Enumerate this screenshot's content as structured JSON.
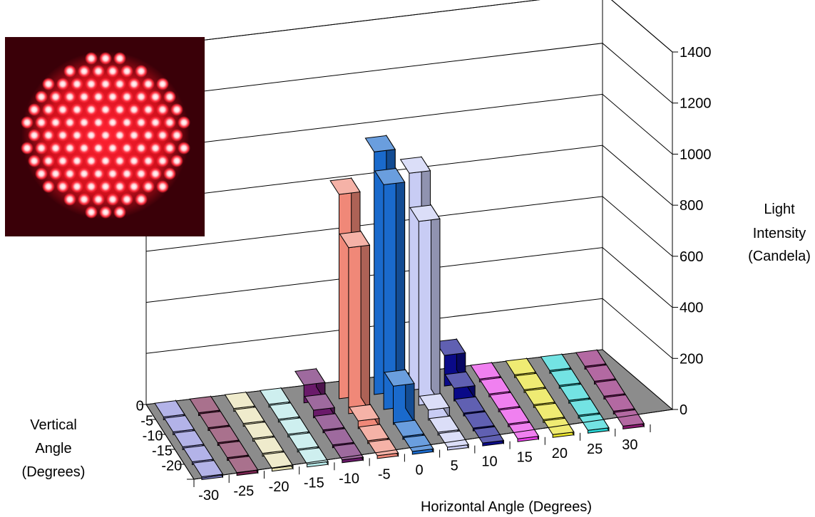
{
  "chart_data": {
    "type": "bar",
    "subtype": "3d-column",
    "grid": true,
    "zlim": [
      0,
      1400
    ],
    "z_ticks": [
      "0",
      "200",
      "400",
      "600",
      "800",
      "1000",
      "1200",
      "1400"
    ],
    "zlabel": [
      "Light",
      "Intensity",
      "(Candela)"
    ],
    "xlabel": "Horizontal Angle (Degrees)",
    "ylabel": [
      "Vertical",
      "Angle",
      "(Degrees)"
    ],
    "x": [
      -30,
      -25,
      -20,
      -15,
      -10,
      -5,
      0,
      5,
      10,
      15,
      20,
      25,
      30
    ],
    "x_ticks": [
      "-30",
      "-25",
      "-20",
      "-15",
      "-10",
      "-5",
      "0",
      "5",
      "10",
      "15",
      "20",
      "25",
      "30"
    ],
    "y": [
      0,
      -5,
      -10,
      -15,
      -20
    ],
    "y_ticks": [
      "0",
      "-5",
      "-10",
      "-15",
      "-20"
    ],
    "colors": [
      "#8a8adc",
      "#7a2450",
      "#e6e0b0",
      "#b4e6e6",
      "#6a1a6a",
      "#f08878",
      "#1a6acc",
      "#c8ccf4",
      "#0a0a88",
      "#e83ce8",
      "#e6e028",
      "#28d4d4",
      "#8a1870"
    ],
    "floor_color": "#8c8c8c",
    "values": [
      [
        0,
        0,
        0,
        0,
        70,
        800,
        950,
        850,
        120,
        0,
        0,
        0,
        0
      ],
      [
        0,
        0,
        0,
        0,
        30,
        650,
        880,
        720,
        50,
        0,
        0,
        0,
        0
      ],
      [
        0,
        0,
        0,
        0,
        5,
        30,
        150,
        40,
        5,
        0,
        0,
        0,
        0
      ],
      [
        0,
        0,
        0,
        0,
        0,
        0,
        0,
        0,
        0,
        0,
        0,
        0,
        0
      ],
      [
        0,
        0,
        0,
        0,
        0,
        0,
        0,
        0,
        0,
        0,
        0,
        0,
        0
      ]
    ]
  },
  "inset_image": {
    "icon": "red-led-traffic-signal-photo",
    "background": "#3a0008",
    "led_color": "#ff2a3a"
  }
}
